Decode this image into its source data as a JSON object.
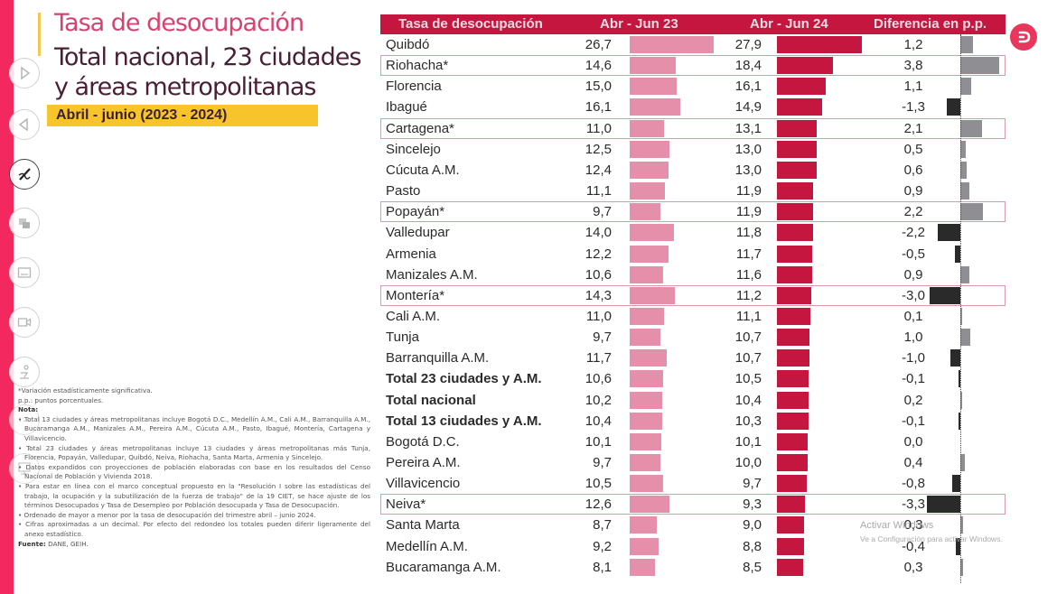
{
  "header": {
    "title": "Tasa de desocupación",
    "subtitle": "Total nacional, 23 ciudades y áreas metropolitanas",
    "period": "Abril - junio (2023 - 2024)"
  },
  "sidebar_tools": [
    {
      "icon": "next-slide-icon"
    },
    {
      "icon": "previous-slide-icon"
    },
    {
      "icon": "pen-icon"
    },
    {
      "icon": "slides-icon"
    },
    {
      "icon": "subtitles-icon"
    },
    {
      "icon": "camera-icon"
    },
    {
      "icon": "presenter-icon"
    },
    {
      "icon": "more-icon"
    },
    {
      "icon": "screen-icon"
    }
  ],
  "colors": {
    "header_bg": "#c4163e",
    "bar_2023": "#e58fab",
    "bar_2024": "#c4163e",
    "diff_positive": "#8f8f93",
    "diff_negative": "#2a2a2a",
    "highlight_border": "#d99aa8",
    "period_bg": "#f7c52b",
    "side_strip": "#f3285f"
  },
  "chart_data": {
    "type": "table",
    "title": "Tasa de desocupación",
    "columns": [
      "Tasa de desocupación",
      "Abr - Jun 23",
      "Abr - Jun 24",
      "Diferencia en p.p."
    ],
    "rows": [
      {
        "name": "Quibdó",
        "v2023": "26,7",
        "v2024": "27,9",
        "diff": "1,2",
        "n23": 26.7,
        "n24": 27.9,
        "nd": 1.2,
        "significant": false,
        "bold": false
      },
      {
        "name": "Riohacha*",
        "v2023": "14,6",
        "v2024": "18,4",
        "diff": "3,8",
        "n23": 14.6,
        "n24": 18.4,
        "nd": 3.8,
        "significant": true,
        "bold": false
      },
      {
        "name": "Florencia",
        "v2023": "15,0",
        "v2024": "16,1",
        "diff": "1,1",
        "n23": 15.0,
        "n24": 16.1,
        "nd": 1.1,
        "significant": false,
        "bold": false
      },
      {
        "name": "Ibagué",
        "v2023": "16,1",
        "v2024": "14,9",
        "diff": "-1,3",
        "n23": 16.1,
        "n24": 14.9,
        "nd": -1.3,
        "significant": false,
        "bold": false
      },
      {
        "name": "Cartagena*",
        "v2023": "11,0",
        "v2024": "13,1",
        "diff": "2,1",
        "n23": 11.0,
        "n24": 13.1,
        "nd": 2.1,
        "significant": true,
        "bold": false
      },
      {
        "name": "Sincelejo",
        "v2023": "12,5",
        "v2024": "13,0",
        "diff": "0,5",
        "n23": 12.5,
        "n24": 13.0,
        "nd": 0.5,
        "significant": false,
        "bold": false
      },
      {
        "name": "Cúcuta A.M.",
        "v2023": "12,4",
        "v2024": "13,0",
        "diff": "0,6",
        "n23": 12.4,
        "n24": 13.0,
        "nd": 0.6,
        "significant": false,
        "bold": false
      },
      {
        "name": "Pasto",
        "v2023": "11,1",
        "v2024": "11,9",
        "diff": "0,9",
        "n23": 11.1,
        "n24": 11.9,
        "nd": 0.9,
        "significant": false,
        "bold": false
      },
      {
        "name": "Popayán*",
        "v2023": "9,7",
        "v2024": "11,9",
        "diff": "2,2",
        "n23": 9.7,
        "n24": 11.9,
        "nd": 2.2,
        "significant": true,
        "bold": false
      },
      {
        "name": "Valledupar",
        "v2023": "14,0",
        "v2024": "11,8",
        "diff": "-2,2",
        "n23": 14.0,
        "n24": 11.8,
        "nd": -2.2,
        "significant": false,
        "bold": false
      },
      {
        "name": "Armenia",
        "v2023": "12,2",
        "v2024": "11,7",
        "diff": "-0,5",
        "n23": 12.2,
        "n24": 11.7,
        "nd": -0.5,
        "significant": false,
        "bold": false
      },
      {
        "name": "Manizales A.M.",
        "v2023": "10,6",
        "v2024": "11,6",
        "diff": "0,9",
        "n23": 10.6,
        "n24": 11.6,
        "nd": 0.9,
        "significant": false,
        "bold": false
      },
      {
        "name": "Montería*",
        "v2023": "14,3",
        "v2024": "11,2",
        "diff": "-3,0",
        "n23": 14.3,
        "n24": 11.2,
        "nd": -3.0,
        "significant": true,
        "bold": false
      },
      {
        "name": "Cali A.M.",
        "v2023": "11,0",
        "v2024": "11,1",
        "diff": "0,1",
        "n23": 11.0,
        "n24": 11.1,
        "nd": 0.1,
        "significant": false,
        "bold": false
      },
      {
        "name": "Tunja",
        "v2023": "9,7",
        "v2024": "10,7",
        "diff": "1,0",
        "n23": 9.7,
        "n24": 10.7,
        "nd": 1.0,
        "significant": false,
        "bold": false
      },
      {
        "name": "Barranquilla A.M.",
        "v2023": "11,7",
        "v2024": "10,7",
        "diff": "-1,0",
        "n23": 11.7,
        "n24": 10.7,
        "nd": -1.0,
        "significant": false,
        "bold": false
      },
      {
        "name": "Total 23 ciudades y A.M.",
        "v2023": "10,6",
        "v2024": "10,5",
        "diff": "-0,1",
        "n23": 10.6,
        "n24": 10.5,
        "nd": -0.1,
        "significant": false,
        "bold": true
      },
      {
        "name": "Total nacional",
        "v2023": "10,2",
        "v2024": "10,4",
        "diff": "0,2",
        "n23": 10.2,
        "n24": 10.4,
        "nd": 0.2,
        "significant": false,
        "bold": true
      },
      {
        "name": "Total 13 ciudades y A.M.",
        "v2023": "10,4",
        "v2024": "10,3",
        "diff": "-0,1",
        "n23": 10.4,
        "n24": 10.3,
        "nd": -0.1,
        "significant": false,
        "bold": true
      },
      {
        "name": "Bogotá D.C.",
        "v2023": "10,1",
        "v2024": "10,1",
        "diff": "0,0",
        "n23": 10.1,
        "n24": 10.1,
        "nd": 0.0,
        "significant": false,
        "bold": false
      },
      {
        "name": "Pereira A.M.",
        "v2023": "9,7",
        "v2024": "10,0",
        "diff": "0,4",
        "n23": 9.7,
        "n24": 10.0,
        "nd": 0.4,
        "significant": false,
        "bold": false
      },
      {
        "name": "Villavicencio",
        "v2023": "10,5",
        "v2024": "9,7",
        "diff": "-0,8",
        "n23": 10.5,
        "n24": 9.7,
        "nd": -0.8,
        "significant": false,
        "bold": false
      },
      {
        "name": "Neiva*",
        "v2023": "12,6",
        "v2024": "9,3",
        "diff": "-3,3",
        "n23": 12.6,
        "n24": 9.3,
        "nd": -3.3,
        "significant": true,
        "bold": false
      },
      {
        "name": "Santa Marta",
        "v2023": "8,7",
        "v2024": "9,0",
        "diff": "0,3",
        "n23": 8.7,
        "n24": 9.0,
        "nd": 0.3,
        "significant": false,
        "bold": false
      },
      {
        "name": "Medellín A.M.",
        "v2023": "9,2",
        "v2024": "8,8",
        "diff": "-0,4",
        "n23": 9.2,
        "n24": 8.8,
        "nd": -0.4,
        "significant": false,
        "bold": false
      },
      {
        "name": "Bucaramanga A.M.",
        "v2023": "8,1",
        "v2024": "8,5",
        "diff": "0,3",
        "n23": 8.1,
        "n24": 8.5,
        "nd": 0.3,
        "significant": false,
        "bold": false
      }
    ]
  },
  "notes": {
    "significance": "*Variación estadísticamente significativa.",
    "pp": "p.p.: puntos porcentuales.",
    "notes_label": "Nota:",
    "items": [
      "Total 13 ciudades y áreas metropolitanas incluye Bogotá D.C., Medellín A.M., Cali A.M., Barranquilla A.M., Bucaramanga A.M., Manizales A.M., Pereira A.M., Cúcuta A.M., Pasto, Ibagué, Montería, Cartagena y Villavicencio.",
      "Total 23 ciudades y áreas metropolitanas incluye 13 ciudades y áreas metropolitanas más Tunja, Florencia, Popayán, Valledupar, Quibdó, Neiva, Riohacha, Santa Marta, Armenia y Sincelejo.",
      "Datos expandidos con proyecciones de población elaboradas con base en los resultados del Censo Nacional de Población y Vivienda 2018.",
      "Para estar en línea con el marco conceptual propuesto en la \"Resolución I sobre las estadísticas del trabajo, la ocupación y la subutilización de la fuerza de trabajo\" de la 19 CIET, se hace ajuste de los términos Desocupados y Tasa de Desempleo por Población desocupada y Tasa de Desocupación.",
      "Ordenado de mayor a menor por la tasa de desocupación del trimestre abril – junio 2024.",
      "Cifras aproximadas a un decimal. Por efecto del redondeo los totales pueden diferir ligeramente del anexo estadístico."
    ],
    "source_label": "Fuente:",
    "source": "DANE, GEIH."
  },
  "watermark": {
    "line1": "Activar Windows",
    "line2": "Ve a Configuración para activar Windows."
  }
}
